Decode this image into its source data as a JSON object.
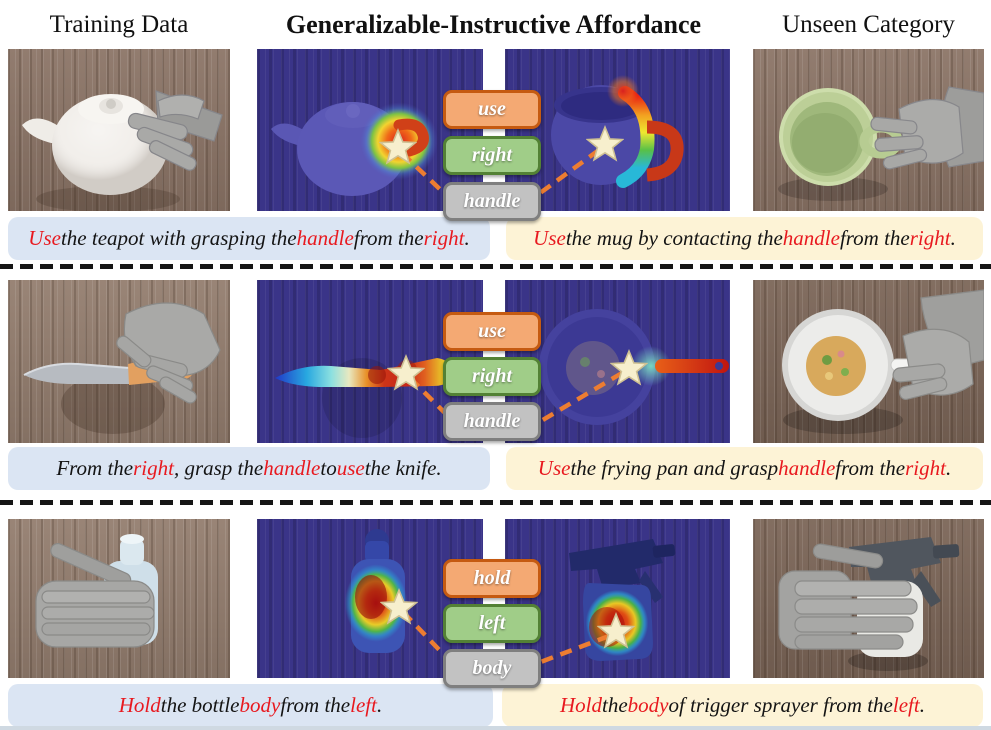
{
  "figure": {
    "headers": {
      "left": "Training Data",
      "center": "Generalizable-Instructive Affordance",
      "right": "Unseen Category"
    }
  },
  "colors": {
    "red": "#e8191f",
    "text": "#141414",
    "cap-blue": "#dbe5f3",
    "cap-yellow": "#fdf3d6",
    "tag-orange-fill": "#f4a973",
    "tag-orange-border": "#c55a11",
    "tag-green-fill": "#a0cd88",
    "tag-green-border": "#538135",
    "tag-gray-fill": "#c2c2c2",
    "tag-gray-border": "#7f7f7f",
    "connector": "#ed7d31",
    "star-fill": "#f7efcd",
    "star-border": "#cfc193",
    "navy": "#3a3488",
    "divider": "#151515"
  },
  "rows": [
    {
      "tags": [
        {
          "label": "use"
        },
        {
          "label": "right"
        },
        {
          "label": "handle"
        }
      ],
      "caption_left": {
        "segments": [
          {
            "t": "Use",
            "red": true
          },
          {
            "t": " the teapot with grasping the "
          },
          {
            "t": "handle",
            "red": true
          },
          {
            "t": " from the "
          },
          {
            "t": "right",
            "red": true
          },
          {
            "t": "."
          }
        ]
      },
      "caption_right": {
        "segments": [
          {
            "t": "Use",
            "red": true
          },
          {
            "t": " the mug by contacting the "
          },
          {
            "t": "handle",
            "red": true
          },
          {
            "t": " from the "
          },
          {
            "t": "right",
            "red": true
          },
          {
            "t": "."
          }
        ]
      }
    },
    {
      "tags": [
        {
          "label": "use"
        },
        {
          "label": "right"
        },
        {
          "label": "handle"
        }
      ],
      "caption_left": {
        "segments": [
          {
            "t": "From the "
          },
          {
            "t": "right",
            "red": true
          },
          {
            "t": ", grasp the "
          },
          {
            "t": "handle",
            "red": true
          },
          {
            "t": " to "
          },
          {
            "t": "use",
            "red": true
          },
          {
            "t": " the knife."
          }
        ]
      },
      "caption_right": {
        "segments": [
          {
            "t": "Use",
            "red": true
          },
          {
            "t": " the frying pan and grasp "
          },
          {
            "t": "handle",
            "red": true
          },
          {
            "t": " from the "
          },
          {
            "t": "right",
            "red": true
          },
          {
            "t": "."
          }
        ]
      }
    },
    {
      "tags": [
        {
          "label": "hold"
        },
        {
          "label": "left"
        },
        {
          "label": "body"
        }
      ],
      "caption_left": {
        "segments": [
          {
            "t": "Hold",
            "red": true
          },
          {
            "t": " the bottle "
          },
          {
            "t": "body",
            "red": true
          },
          {
            "t": " from the "
          },
          {
            "t": "left",
            "red": true
          },
          {
            "t": "."
          }
        ]
      },
      "caption_right": {
        "segments": [
          {
            "t": "Hold",
            "red": true
          },
          {
            "t": " the "
          },
          {
            "t": "body",
            "red": true
          },
          {
            "t": " of trigger sprayer from the "
          },
          {
            "t": "left",
            "red": true
          },
          {
            "t": "."
          }
        ]
      }
    }
  ]
}
